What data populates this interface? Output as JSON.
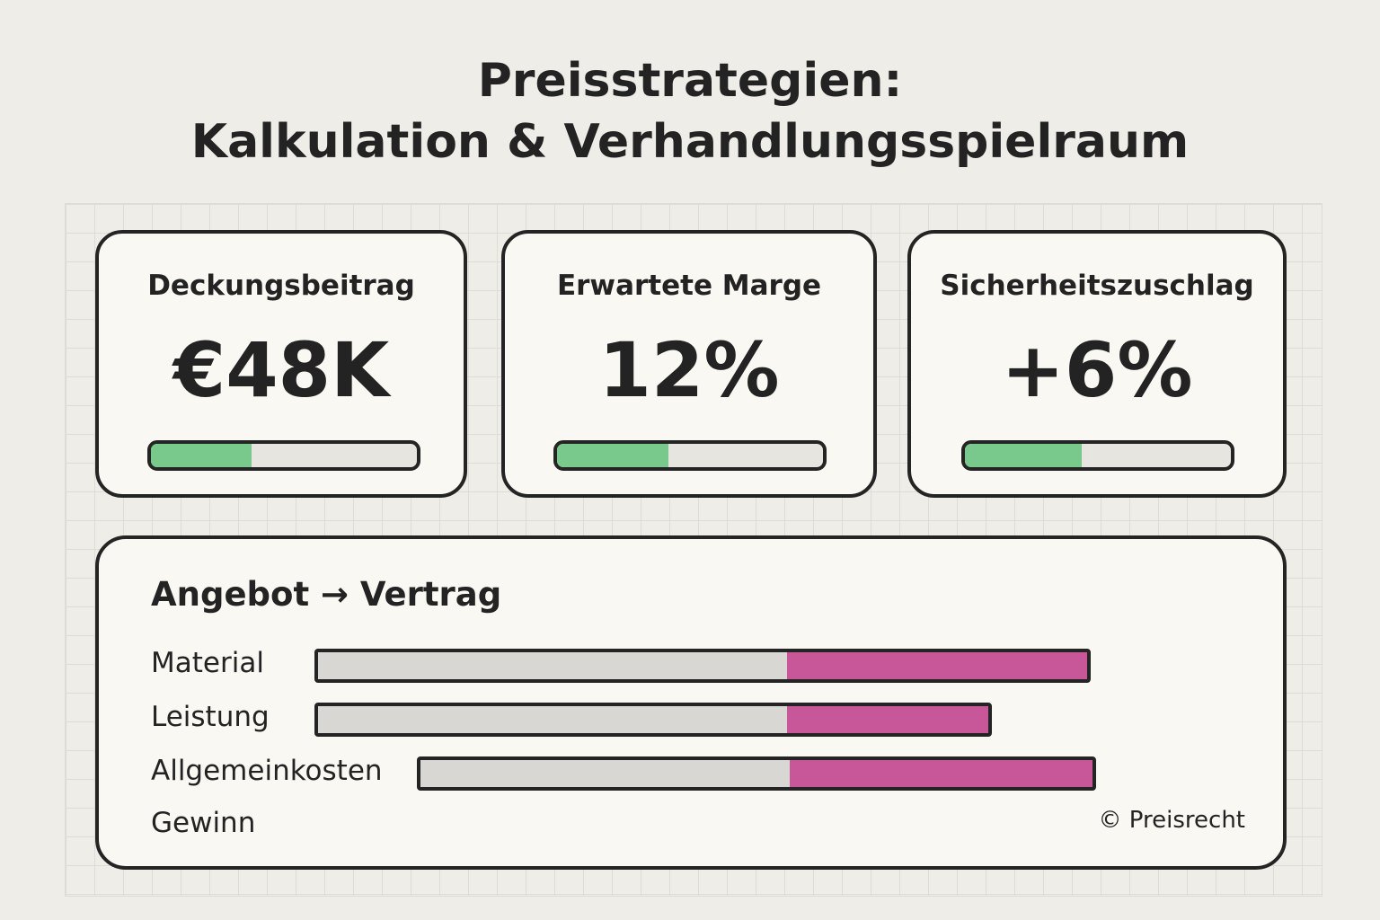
{
  "title": {
    "line1": "Preisstrategien:",
    "line2": "Kalkulation & Verhandlungsspielraum"
  },
  "cards": [
    {
      "label": "Deckungsbeitrag",
      "value": "€48K",
      "progress": 0.38
    },
    {
      "label": "Erwartete Marge",
      "value": "12%",
      "progress": 0.42
    },
    {
      "label": "Sicherheitszuschlag",
      "value": "+6%",
      "progress": 0.44
    }
  ],
  "colors": {
    "progress_fill": "#7ac98c",
    "base_segment": "#d8d7d3",
    "offer_segment": "#c8579a",
    "background": "#efede7"
  },
  "panel": {
    "title": "Angebot → Vertrag",
    "rows": [
      {
        "label": "Material",
        "base": 0.61,
        "extra": 0.39
      },
      {
        "label": "Leistung",
        "base": 0.7,
        "extra": 0.3
      },
      {
        "label": "Allgemeinkosten",
        "base": 0.55,
        "extra": 0.45
      },
      {
        "label": "Gewinn"
      }
    ],
    "copyright": "© Preisrecht"
  }
}
